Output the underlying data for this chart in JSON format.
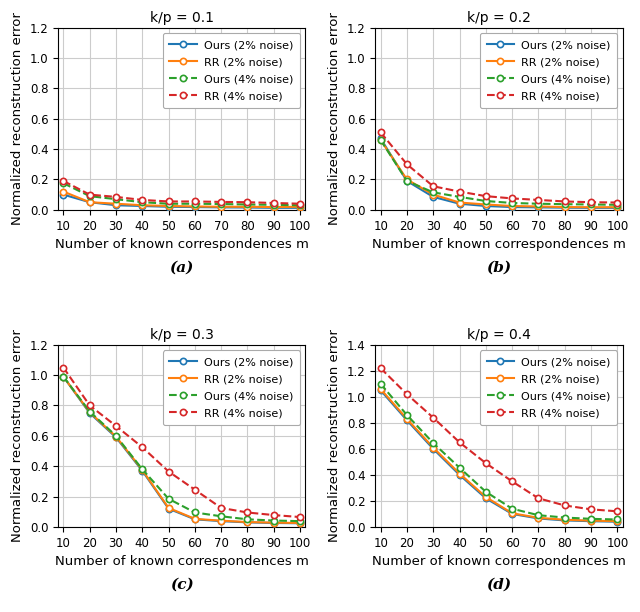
{
  "x": [
    10,
    20,
    30,
    40,
    50,
    60,
    70,
    80,
    90,
    100
  ],
  "subplots": [
    {
      "title": "k/p = 0.1",
      "label": "(a)",
      "ylim": [
        0,
        1.2
      ],
      "yticks": [
        0.0,
        0.2,
        0.4,
        0.6,
        0.8,
        1.0,
        1.2
      ],
      "series": {
        "ours_2": [
          0.1,
          0.05,
          0.03,
          0.025,
          0.02,
          0.018,
          0.016,
          0.015,
          0.013,
          0.013
        ],
        "rr_2": [
          0.12,
          0.05,
          0.04,
          0.03,
          0.025,
          0.022,
          0.02,
          0.02,
          0.018,
          0.02
        ],
        "ours_4": [
          0.175,
          0.09,
          0.07,
          0.05,
          0.04,
          0.04,
          0.038,
          0.035,
          0.033,
          0.03
        ],
        "rr_4": [
          0.19,
          0.1,
          0.085,
          0.065,
          0.055,
          0.055,
          0.052,
          0.05,
          0.045,
          0.04
        ]
      }
    },
    {
      "title": "k/p = 0.2",
      "label": "(b)",
      "ylim": [
        0,
        1.2
      ],
      "yticks": [
        0.0,
        0.2,
        0.4,
        0.6,
        0.8,
        1.0,
        1.2
      ],
      "series": {
        "ours_2": [
          0.47,
          0.19,
          0.085,
          0.04,
          0.025,
          0.018,
          0.016,
          0.014,
          0.013,
          0.013
        ],
        "rr_2": [
          0.46,
          0.2,
          0.1,
          0.048,
          0.035,
          0.025,
          0.022,
          0.018,
          0.017,
          0.017
        ],
        "ours_4": [
          0.46,
          0.19,
          0.115,
          0.085,
          0.058,
          0.045,
          0.04,
          0.037,
          0.035,
          0.033
        ],
        "rr_4": [
          0.51,
          0.3,
          0.155,
          0.12,
          0.09,
          0.075,
          0.065,
          0.055,
          0.05,
          0.048
        ]
      }
    },
    {
      "title": "k/p = 0.3",
      "label": "(c)",
      "ylim": [
        0,
        1.2
      ],
      "yticks": [
        0.0,
        0.2,
        0.4,
        0.6,
        0.8,
        1.0,
        1.2
      ],
      "series": {
        "ours_2": [
          0.99,
          0.75,
          0.59,
          0.37,
          0.12,
          0.05,
          0.038,
          0.03,
          0.026,
          0.024
        ],
        "rr_2": [
          0.99,
          0.755,
          0.595,
          0.375,
          0.125,
          0.053,
          0.041,
          0.032,
          0.028,
          0.026
        ],
        "ours_4": [
          0.99,
          0.76,
          0.6,
          0.38,
          0.185,
          0.095,
          0.07,
          0.05,
          0.042,
          0.038
        ],
        "rr_4": [
          1.05,
          0.8,
          0.665,
          0.525,
          0.365,
          0.245,
          0.125,
          0.095,
          0.078,
          0.065
        ]
      }
    },
    {
      "title": "k/p = 0.4",
      "label": "(d)",
      "ylim": [
        0,
        1.4
      ],
      "yticks": [
        0.0,
        0.2,
        0.4,
        0.6,
        0.8,
        1.0,
        1.2,
        1.4
      ],
      "series": {
        "ours_2": [
          1.05,
          0.82,
          0.6,
          0.4,
          0.22,
          0.1,
          0.065,
          0.05,
          0.044,
          0.04
        ],
        "rr_2": [
          1.06,
          0.83,
          0.61,
          0.41,
          0.23,
          0.105,
          0.07,
          0.055,
          0.048,
          0.044
        ],
        "ours_4": [
          1.1,
          0.86,
          0.645,
          0.455,
          0.27,
          0.14,
          0.09,
          0.072,
          0.062,
          0.057
        ],
        "rr_4": [
          1.22,
          1.02,
          0.84,
          0.65,
          0.49,
          0.35,
          0.22,
          0.165,
          0.135,
          0.12
        ]
      }
    }
  ],
  "legend_labels": [
    "Ours (2% noise)",
    "RR (2% noise)",
    "Ours (4% noise)",
    "RR (4% noise)"
  ],
  "colors": {
    "ours_2": "#1f77b4",
    "rr_2": "#ff7f0e",
    "ours_4": "#2ca02c",
    "rr_4": "#d62728"
  },
  "xlabel": "Number of known correspondences m",
  "ylabel": "Normalized reconstruction error",
  "figsize": [
    6.4,
    6.12
  ],
  "dpi": 100
}
